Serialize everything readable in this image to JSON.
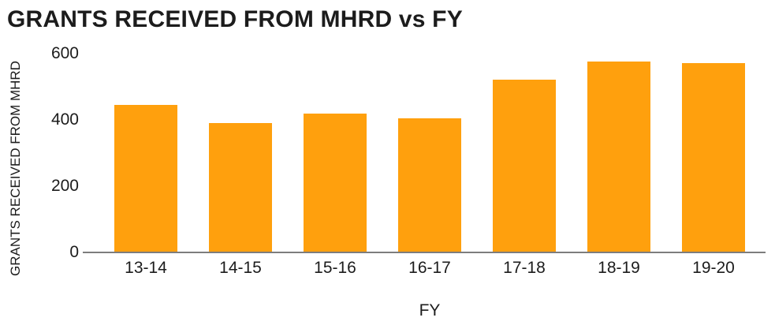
{
  "chart_data": {
    "type": "bar",
    "title": "GRANTS RECEIVED FROM MHRD vs FY",
    "xlabel": "FY",
    "ylabel": "GRANTS RECEIVED FROM MHRD",
    "categories": [
      "13-14",
      "14-15",
      "15-16",
      "16-17",
      "17-18",
      "18-19",
      "19-20"
    ],
    "values": [
      445,
      390,
      418,
      405,
      521,
      576,
      571
    ],
    "ylim": [
      0,
      600
    ],
    "yticks": [
      0,
      200,
      400,
      600
    ],
    "grid": false,
    "legend": false,
    "bar_color": "#FFA00D",
    "axis_line_color": "#7d7d7d",
    "text_color": "#1c1c1c",
    "background_color": "#ffffff"
  }
}
